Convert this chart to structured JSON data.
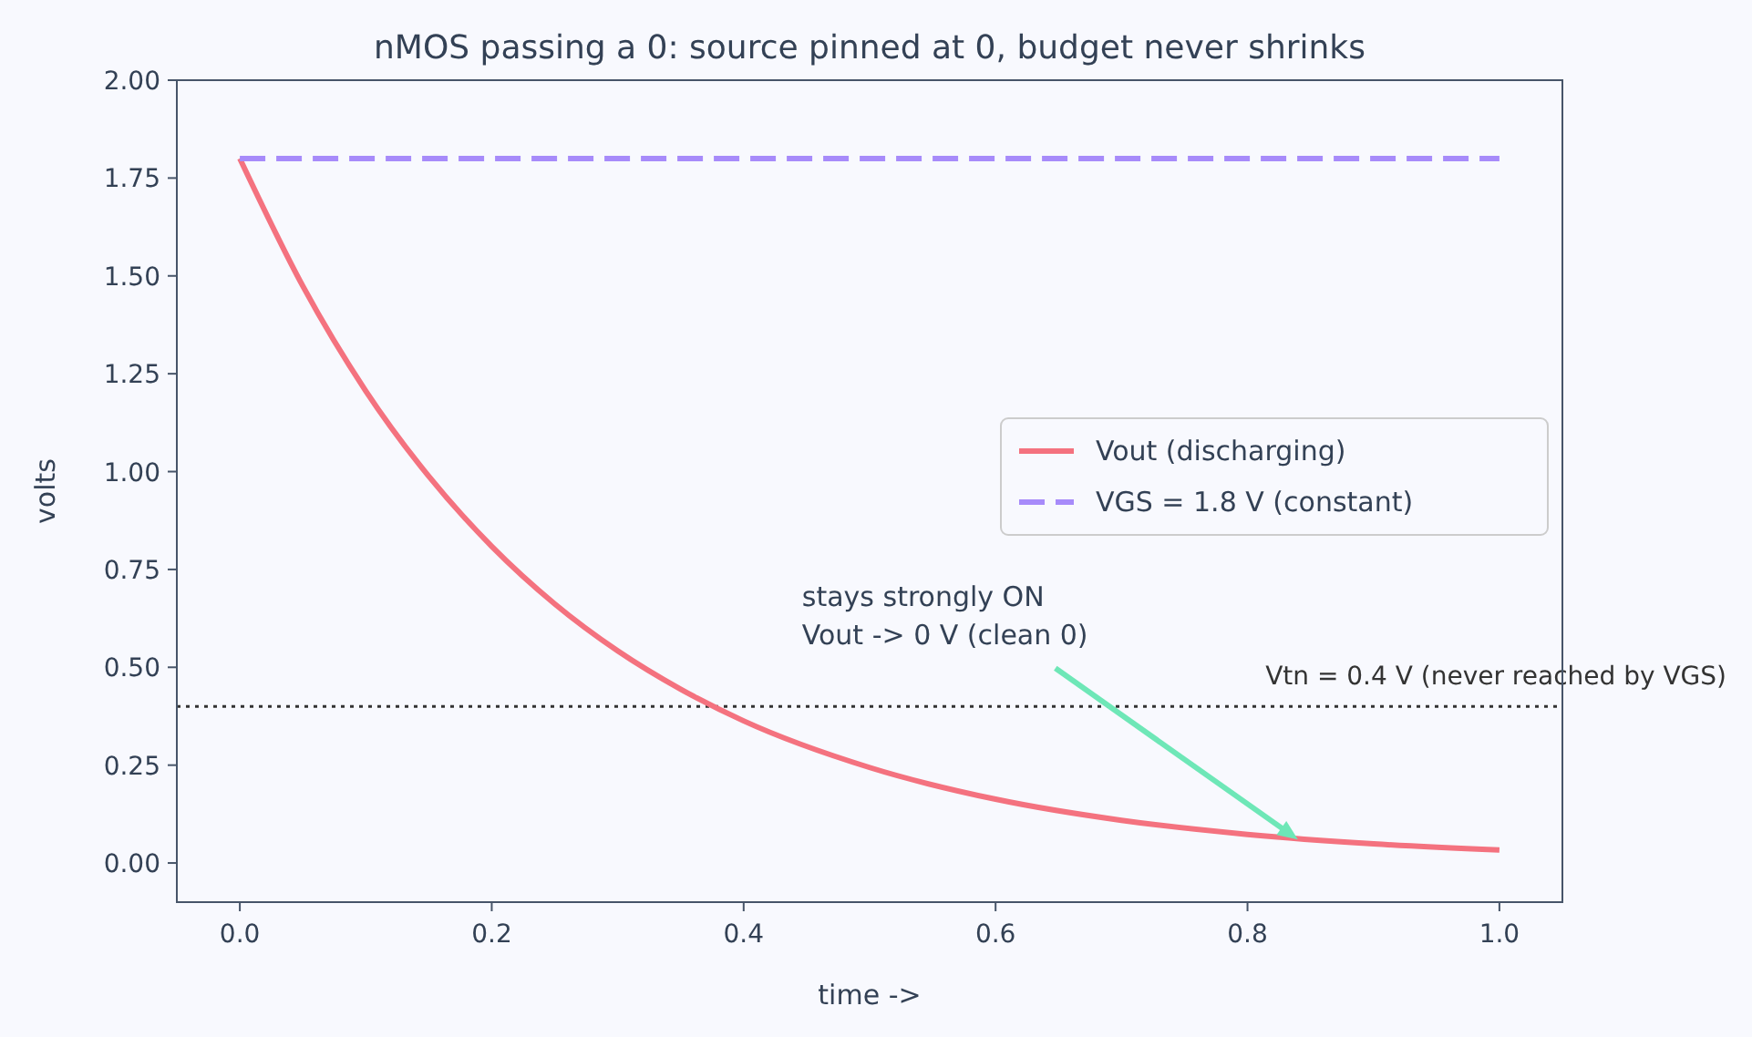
{
  "chart_data": {
    "type": "line",
    "title": "nMOS passing a 0: source pinned at 0, budget never shrinks",
    "xlabel": "time ->",
    "ylabel": "volts",
    "x": [
      0,
      0.05,
      0.1,
      0.15,
      0.2,
      0.25,
      0.3,
      0.35,
      0.4,
      0.5,
      0.6,
      0.7,
      0.8,
      0.9,
      1.0
    ],
    "series": [
      {
        "name": "Vout (discharging)",
        "color": "#f4727f",
        "values": [
          1.8,
          1.474,
          1.206,
          0.988,
          0.809,
          0.662,
          0.542,
          0.444,
          0.363,
          0.244,
          0.163,
          0.109,
          0.073,
          0.049,
          0.033
        ]
      },
      {
        "name": "VGS = 1.8 V (constant)",
        "color": "#a78bfa",
        "line_style": "dashed",
        "x": [
          0,
          1.0
        ],
        "values": [
          1.8,
          1.8
        ]
      }
    ],
    "xlim": [
      -0.05,
      1.05
    ],
    "ylim": [
      -0.1,
      2.0
    ],
    "xticks": [
      {
        "value": 0,
        "label": "0.0"
      },
      {
        "value": 0.2,
        "label": "0.2"
      },
      {
        "value": 0.4,
        "label": "0.4"
      },
      {
        "value": 0.6,
        "label": "0.6"
      },
      {
        "value": 0.8,
        "label": "0.8"
      },
      {
        "value": 1,
        "label": "1.0"
      }
    ],
    "yticks": [
      {
        "value": 0,
        "label": "0.00"
      },
      {
        "value": 0.25,
        "label": "0.25"
      },
      {
        "value": 0.5,
        "label": "0.50"
      },
      {
        "value": 0.75,
        "label": "0.75"
      },
      {
        "value": 1,
        "label": "1.00"
      },
      {
        "value": 1.25,
        "label": "1.25"
      },
      {
        "value": 1.5,
        "label": "1.50"
      },
      {
        "value": 1.75,
        "label": "1.75"
      },
      {
        "value": 2,
        "label": "2.00"
      }
    ],
    "ref_lines": [
      {
        "axis": "y",
        "value": 0.4,
        "label": "Vtn = 0.4 V (never reached by VGS)",
        "color": "#333333",
        "line_style": "dotted"
      }
    ],
    "annotations": [
      {
        "text": "stays strongly ON\nVout -> 0 V (clean 0)",
        "x": 0.84,
        "y": 0.06
      }
    ],
    "legend": "center right",
    "grid": false,
    "marker": "none"
  }
}
